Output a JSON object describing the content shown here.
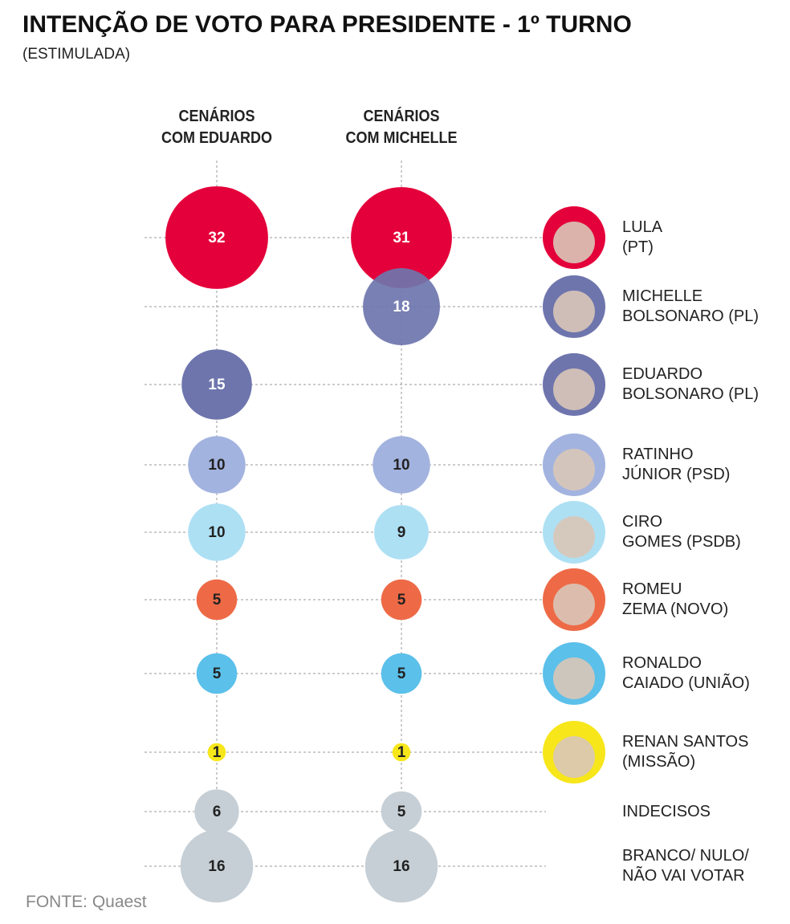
{
  "chart_data": {
    "type": "bubble",
    "title": "INTENÇÃO DE VOTO PARA PRESIDENTE - 1º TURNO",
    "subtitle": "(ESTIMULADA)",
    "source": "FONTE: Quaest",
    "categories": [
      "LULA\n(PT)",
      "MICHELLE\nBOLSONARO (PL)",
      "EDUARDO\nBOLSONARO (PL)",
      "RATINHO\nJÚNIOR (PSD)",
      "CIRO\nGOMES (PSDB)",
      "ROMEU\nZEMA (NOVO)",
      "RONALDO\nCAIADO (UNIÃO)",
      "RENAN SANTOS\n(MISSÃO)",
      "INDECISOS",
      "BRANCO/ NULO/\nNÃO VAI VOTAR"
    ],
    "colors": [
      "#e4003a",
      "#6e75ad",
      "#6e75ad",
      "#a3b3df",
      "#aee0f4",
      "#ee6a47",
      "#5bc0ea",
      "#f7e61a",
      "#c6cfd6",
      "#c6cfd6"
    ],
    "photos": [
      true,
      true,
      true,
      true,
      true,
      true,
      true,
      true,
      false,
      false
    ],
    "series": [
      {
        "name": "CENÁRIOS\nCOM EDUARDO",
        "values": [
          32,
          null,
          15,
          10,
          10,
          5,
          5,
          1,
          6,
          16
        ]
      },
      {
        "name": "CENÁRIOS\nCOM MICHELLE",
        "values": [
          31,
          18,
          null,
          10,
          9,
          5,
          5,
          1,
          5,
          16
        ]
      }
    ]
  }
}
